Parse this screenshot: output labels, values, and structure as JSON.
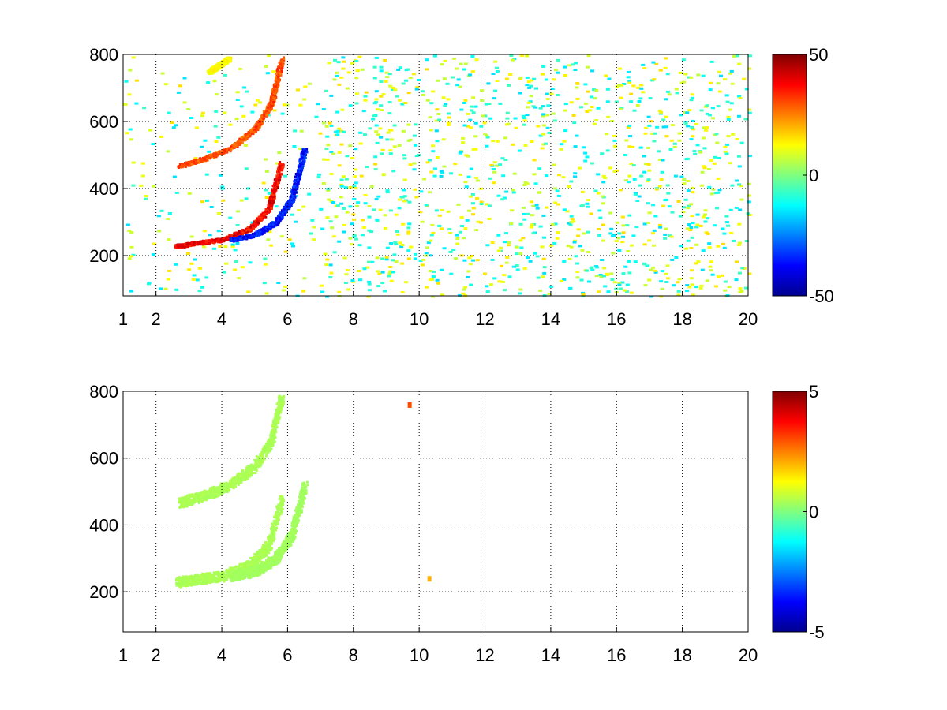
{
  "chart_data": [
    {
      "type": "heatmap",
      "title": "",
      "xlabel": "",
      "ylabel": "",
      "xlim": [
        1,
        20
      ],
      "ylim": [
        80,
        800
      ],
      "xticks": [
        1,
        2,
        4,
        6,
        8,
        10,
        12,
        14,
        16,
        18,
        20
      ],
      "yticks": [
        200,
        400,
        600,
        800
      ],
      "grid": true,
      "colormap": "jet",
      "clim": [
        -50,
        50
      ],
      "colorbar_ticks": [
        "-50",
        "0",
        "50"
      ],
      "features": [
        {
          "shape": "arc",
          "x": [
            2.6,
            3.2,
            4.0,
            4.8,
            5.4,
            5.8
          ],
          "y": [
            230,
            240,
            250,
            280,
            340,
            480
          ],
          "value": 45
        },
        {
          "shape": "arc",
          "x": [
            2.7,
            3.4,
            4.2,
            5.0,
            5.5,
            5.8
          ],
          "y": [
            470,
            490,
            520,
            580,
            660,
            790
          ],
          "value": 35
        },
        {
          "shape": "arc",
          "x": [
            4.3,
            5.0,
            5.6,
            6.1,
            6.5
          ],
          "y": [
            250,
            265,
            300,
            370,
            520
          ],
          "value": -42
        },
        {
          "shape": "arc",
          "x": [
            3.6,
            3.9,
            4.2
          ],
          "y": [
            750,
            770,
            790
          ],
          "value": 15
        }
      ]
    },
    {
      "type": "heatmap",
      "title": "",
      "xlabel": "",
      "ylabel": "",
      "xlim": [
        1,
        20
      ],
      "ylim": [
        80,
        800
      ],
      "xticks": [
        1,
        2,
        4,
        6,
        8,
        10,
        12,
        14,
        16,
        18,
        20
      ],
      "yticks": [
        200,
        400,
        600,
        800
      ],
      "grid": true,
      "colormap": "jet",
      "clim": [
        -5,
        5
      ],
      "colorbar_ticks": [
        "-5",
        "0",
        "5"
      ],
      "features": [
        {
          "shape": "arc",
          "x": [
            2.6,
            3.2,
            4.0,
            4.8,
            5.4,
            5.8
          ],
          "y": [
            230,
            240,
            250,
            280,
            340,
            480
          ],
          "value": 0.5
        },
        {
          "shape": "arc",
          "x": [
            2.7,
            3.4,
            4.2,
            5.0,
            5.5,
            5.8
          ],
          "y": [
            470,
            490,
            520,
            580,
            660,
            790
          ],
          "value": 0.5
        },
        {
          "shape": "arc",
          "x": [
            4.3,
            5.0,
            5.6,
            6.1,
            6.5
          ],
          "y": [
            250,
            265,
            300,
            370,
            520
          ],
          "value": 0.4
        },
        {
          "shape": "spot",
          "x": [
            9.7
          ],
          "y": [
            760
          ],
          "value": 3
        },
        {
          "shape": "spot",
          "x": [
            10.3
          ],
          "y": [
            240
          ],
          "value": 2
        }
      ]
    }
  ]
}
